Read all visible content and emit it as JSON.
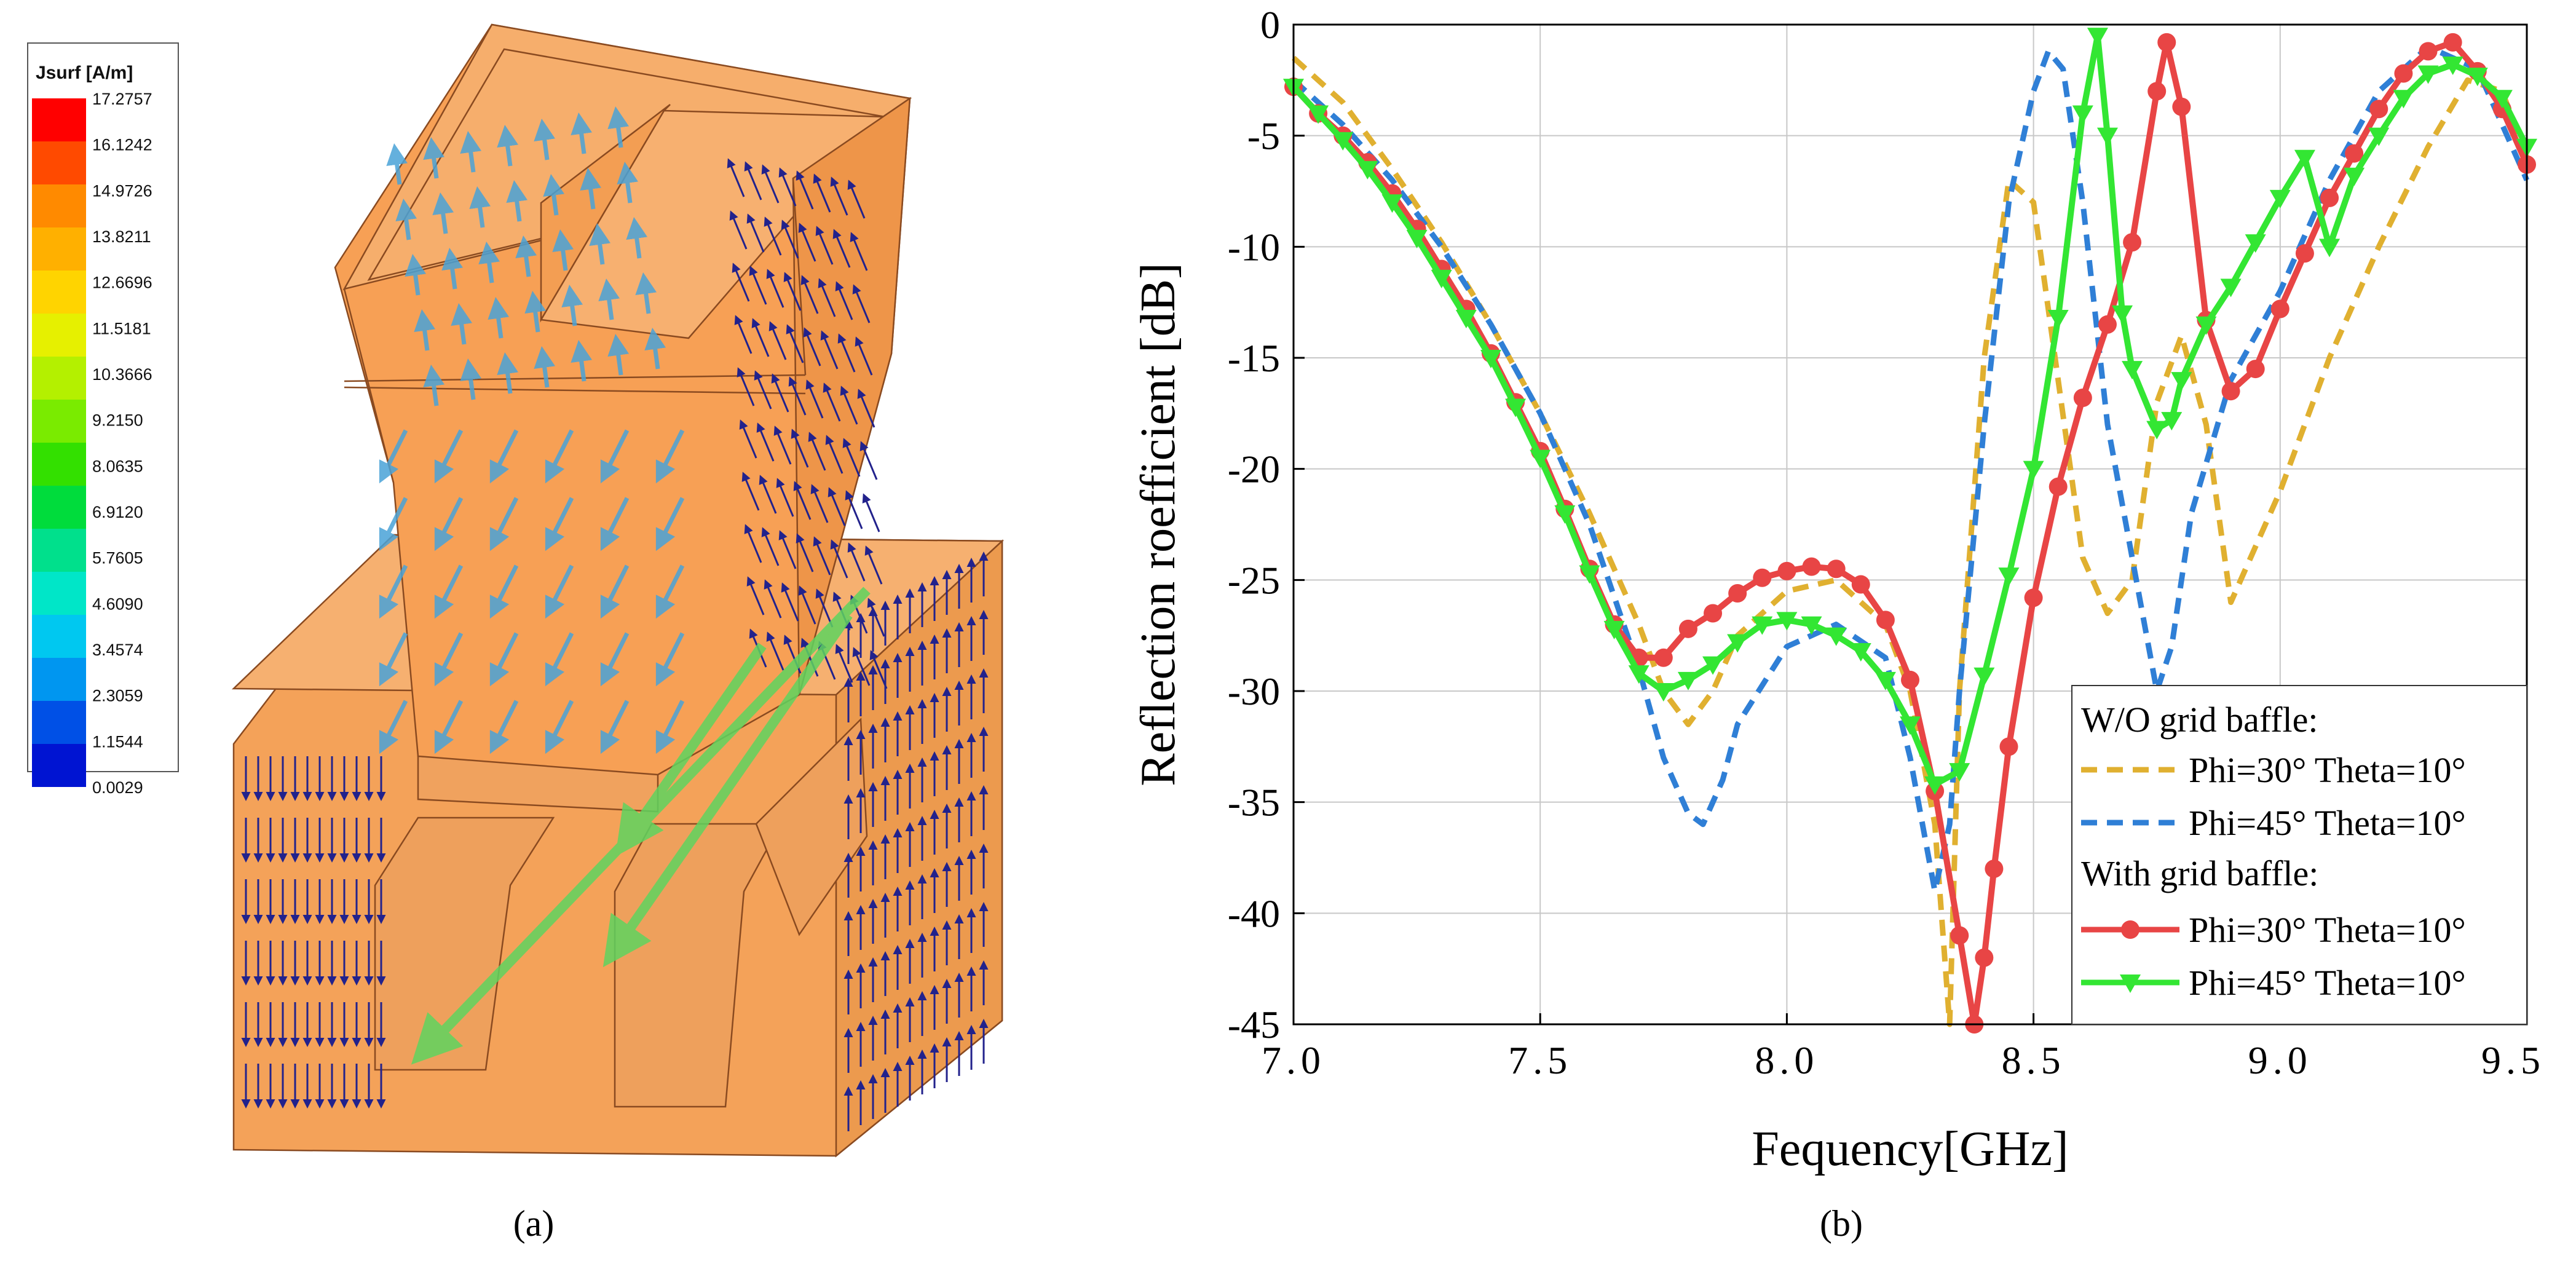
{
  "panel_a": {
    "caption": "(a)",
    "colorbar": {
      "title": "Jsurf [A/m]",
      "ticks": [
        "17.2757",
        "16.1242",
        "14.9726",
        "13.8211",
        "12.6696",
        "11.5181",
        "10.3666",
        "9.2150",
        "8.0635",
        "6.9120",
        "5.7605",
        "4.6090",
        "3.4574",
        "2.3059",
        "1.1544",
        "0.0029"
      ],
      "colors": [
        "#ff0000",
        "#ff4a00",
        "#ff8a00",
        "#ffb000",
        "#ffd400",
        "#e6f000",
        "#b4f000",
        "#7aeb00",
        "#33e000",
        "#00dc3c",
        "#00e08c",
        "#00e6c8",
        "#00c8f0",
        "#0096f0",
        "#0050e6",
        "#0014d2"
      ]
    },
    "model": {
      "body_color": "#f4a259",
      "arrow_dark": "#22228c",
      "arrow_light": "#4aa3d8",
      "arrow_green": "#5fd45f"
    }
  },
  "panel_b": {
    "caption": "(b)",
    "legend": {
      "group1": "W/O grid baffle:",
      "group2": "With grid baffle:"
    }
  },
  "chart_data": {
    "type": "line",
    "title": "",
    "xlabel": "Fequency[GHz]",
    "ylabel": "Reflection roefficient [dB]",
    "xlim": [
      7.0,
      9.5
    ],
    "ylim": [
      -45,
      0
    ],
    "xticks": [
      "7.0",
      "7.5",
      "8.0",
      "8.5",
      "9.0",
      "9.5"
    ],
    "xtick_values": [
      7.0,
      7.5,
      8.0,
      8.5,
      9.0,
      9.5
    ],
    "yticks": [
      "0",
      "-5",
      "-10",
      "-15",
      "-20",
      "-25",
      "-30",
      "-35",
      "-40",
      "-45"
    ],
    "ytick_values": [
      0,
      -5,
      -10,
      -15,
      -20,
      -25,
      -30,
      -35,
      -40,
      -45
    ],
    "grid": true,
    "legend_position": "bottom-right",
    "series": [
      {
        "name": "Phi=30° Theta=10°",
        "group": "W/O grid baffle",
        "color": "#e0b030",
        "style": "dashed",
        "marker": "none",
        "x": [
          7.0,
          7.1,
          7.2,
          7.3,
          7.4,
          7.5,
          7.6,
          7.7,
          7.75,
          7.8,
          7.85,
          7.9,
          8.0,
          8.1,
          8.2,
          8.25,
          8.3,
          8.33,
          8.35,
          8.4,
          8.45,
          8.5,
          8.55,
          8.6,
          8.65,
          8.7,
          8.75,
          8.8,
          8.85,
          8.9,
          9.0,
          9.1,
          9.2,
          9.3,
          9.38,
          9.45,
          9.5
        ],
        "y": [
          -1.5,
          -3.5,
          -6.5,
          -9.8,
          -13.5,
          -17.5,
          -22,
          -27,
          -30,
          -31.5,
          -30,
          -27.5,
          -25.5,
          -25,
          -27,
          -30,
          -36,
          -45,
          -30,
          -15,
          -7,
          -8,
          -16,
          -24,
          -26.5,
          -25,
          -17,
          -14,
          -18,
          -26,
          -21,
          -15,
          -10,
          -5.5,
          -2.5,
          -3,
          -6
        ]
      },
      {
        "name": "Phi=45° Theta=10°",
        "group": "W/O grid baffle",
        "color": "#2f7fd6",
        "style": "dashed",
        "marker": "none",
        "x": [
          7.0,
          7.1,
          7.2,
          7.3,
          7.4,
          7.5,
          7.6,
          7.7,
          7.75,
          7.8,
          7.83,
          7.87,
          7.9,
          8.0,
          8.1,
          8.2,
          8.25,
          8.3,
          8.33,
          8.35,
          8.4,
          8.45,
          8.5,
          8.53,
          8.56,
          8.6,
          8.65,
          8.7,
          8.75,
          8.78,
          8.82,
          8.9,
          9.0,
          9.1,
          9.2,
          9.3,
          9.4,
          9.5
        ],
        "y": [
          -2.5,
          -4.5,
          -7,
          -10,
          -13.5,
          -17.5,
          -22.5,
          -29,
          -33,
          -35.5,
          -36,
          -34,
          -31.5,
          -28,
          -27,
          -28.5,
          -33,
          -39,
          -36,
          -30,
          -18,
          -8,
          -3,
          -1.2,
          -2,
          -8,
          -18,
          -24,
          -30,
          -28,
          -22,
          -16,
          -12,
          -7,
          -3,
          -1,
          -2,
          -7
        ]
      },
      {
        "name": "Phi=30° Theta=10°",
        "group": "With grid baffle",
        "color": "#e84545",
        "style": "solid",
        "marker": "circle",
        "x": [
          7.0,
          7.05,
          7.1,
          7.15,
          7.2,
          7.25,
          7.3,
          7.35,
          7.4,
          7.45,
          7.5,
          7.55,
          7.6,
          7.65,
          7.7,
          7.75,
          7.8,
          7.85,
          7.9,
          7.95,
          8.0,
          8.05,
          8.1,
          8.15,
          8.2,
          8.25,
          8.3,
          8.35,
          8.38,
          8.4,
          8.42,
          8.45,
          8.5,
          8.55,
          8.6,
          8.65,
          8.7,
          8.75,
          8.77,
          8.8,
          8.85,
          8.9,
          8.95,
          9.0,
          9.05,
          9.1,
          9.15,
          9.2,
          9.25,
          9.3,
          9.35,
          9.4,
          9.45,
          9.5
        ],
        "y": [
          -2.8,
          -4,
          -5,
          -6.2,
          -7.6,
          -9.2,
          -11,
          -12.8,
          -14.8,
          -17,
          -19.2,
          -21.8,
          -24.5,
          -27,
          -28.5,
          -28.5,
          -27.2,
          -26.5,
          -25.6,
          -24.9,
          -24.6,
          -24.4,
          -24.5,
          -25.2,
          -26.8,
          -29.5,
          -34.5,
          -41,
          -45,
          -42,
          -38,
          -32.5,
          -25.8,
          -20.8,
          -16.8,
          -13.5,
          -9.8,
          -3,
          -0.8,
          -3.7,
          -13.3,
          -16.5,
          -15.5,
          -12.8,
          -10.3,
          -7.8,
          -5.8,
          -3.8,
          -2.2,
          -1.2,
          -0.8,
          -2.1,
          -3.8,
          -6.3
        ]
      },
      {
        "name": "Phi=45° Theta=10°",
        "group": "With grid baffle",
        "color": "#33e633",
        "style": "solid",
        "marker": "triangle-down",
        "x": [
          7.0,
          7.05,
          7.1,
          7.15,
          7.2,
          7.25,
          7.3,
          7.35,
          7.4,
          7.45,
          7.5,
          7.55,
          7.6,
          7.65,
          7.7,
          7.75,
          7.8,
          7.85,
          7.9,
          7.95,
          8.0,
          8.05,
          8.1,
          8.15,
          8.2,
          8.25,
          8.3,
          8.35,
          8.4,
          8.45,
          8.5,
          8.55,
          8.6,
          8.63,
          8.65,
          8.68,
          8.7,
          8.75,
          8.78,
          8.8,
          8.85,
          8.9,
          8.95,
          9.0,
          9.05,
          9.1,
          9.15,
          9.2,
          9.25,
          9.3,
          9.35,
          9.4,
          9.45,
          9.5
        ],
        "y": [
          -2.8,
          -4,
          -5.2,
          -6.5,
          -8,
          -9.6,
          -11.4,
          -13.2,
          -15,
          -17.2,
          -19.5,
          -22,
          -24.7,
          -27.2,
          -29.2,
          -30,
          -29.5,
          -28.8,
          -27.8,
          -27,
          -26.8,
          -27,
          -27.5,
          -28.2,
          -29.5,
          -31.5,
          -34.2,
          -33.6,
          -29.3,
          -24.8,
          -20,
          -13.2,
          -4,
          -0.5,
          -5,
          -13,
          -15.5,
          -18.2,
          -17.8,
          -16,
          -13.5,
          -11.8,
          -9.8,
          -7.8,
          -6,
          -10,
          -6.8,
          -5,
          -3.3,
          -2.2,
          -1.8,
          -2.3,
          -3.3,
          -5.5
        ]
      }
    ]
  }
}
